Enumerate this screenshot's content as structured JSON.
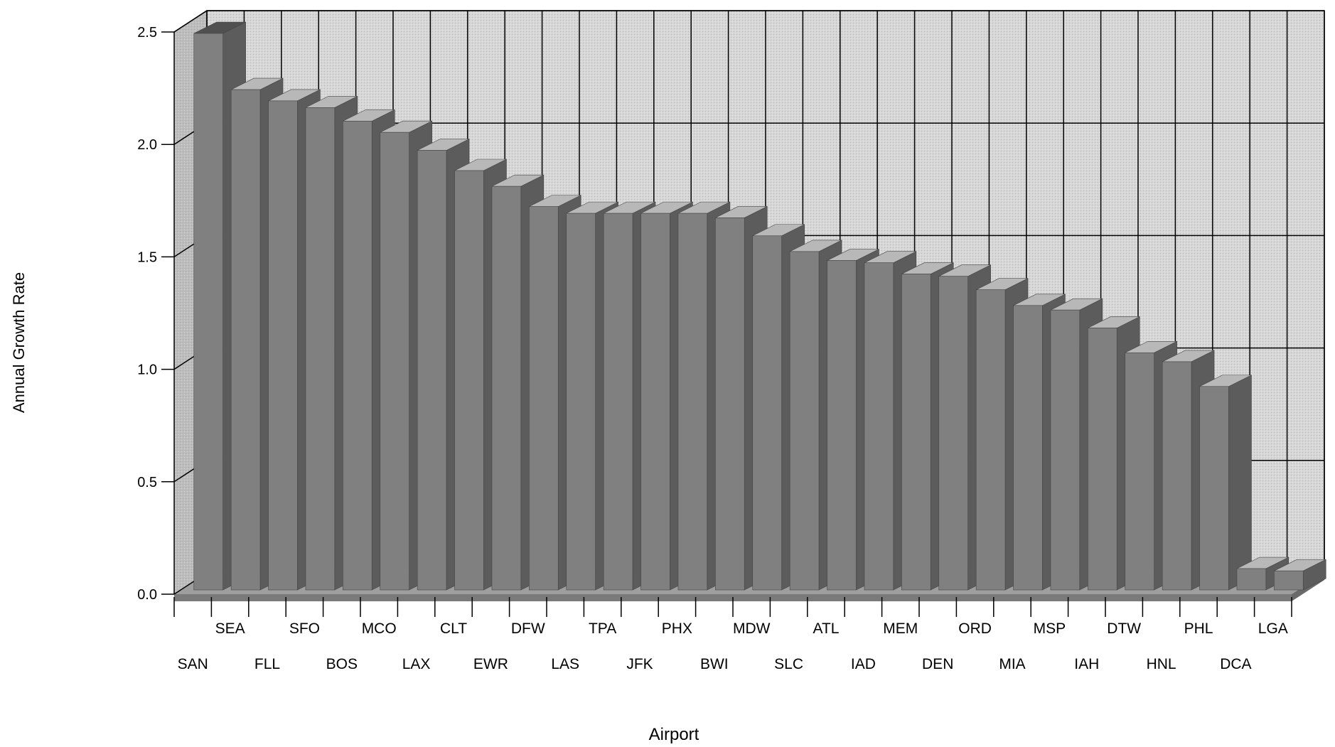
{
  "chart_data": {
    "type": "bar",
    "title": "",
    "xlabel": "Airport",
    "ylabel": "Annual Growth Rate",
    "ylim": [
      0,
      2.5
    ],
    "yticks": [
      "0.0",
      "0.5",
      "1.0",
      "1.5",
      "2.0",
      "2.5"
    ],
    "grid": true,
    "style": "3d",
    "categories": [
      "SAN",
      "SEA",
      "FLL",
      "SFO",
      "BOS",
      "MCO",
      "LAX",
      "CLT",
      "EWR",
      "DFW",
      "LAS",
      "TPA",
      "JFK",
      "PHX",
      "BWI",
      "MDW",
      "SLC",
      "ATL",
      "IAD",
      "MEM",
      "DEN",
      "ORD",
      "MIA",
      "MSP",
      "IAH",
      "DTW",
      "HNL",
      "PHL",
      "DCA",
      "LGA"
    ],
    "values": [
      2.5,
      2.25,
      2.2,
      2.17,
      2.11,
      2.06,
      1.98,
      1.89,
      1.82,
      1.73,
      1.7,
      1.7,
      1.7,
      1.7,
      1.68,
      1.6,
      1.53,
      1.49,
      1.48,
      1.43,
      1.42,
      1.36,
      1.29,
      1.27,
      1.19,
      1.08,
      1.04,
      0.93,
      0.12,
      0.11
    ],
    "colors": {
      "bar_front": "#808080",
      "bar_top": "#b8b8b8",
      "bar_side": "#5c5c5c",
      "wall": "#d8d8d8",
      "side_wall": "#c0c0c0",
      "grid": "#000000"
    }
  }
}
